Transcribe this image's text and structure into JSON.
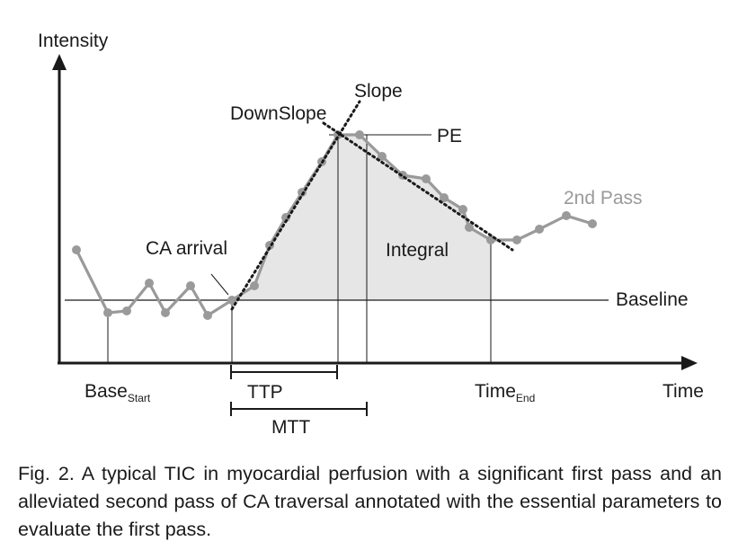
{
  "figure": {
    "y_axis_label": "Intensity",
    "x_axis_label": "Time",
    "labels": {
      "slope": "Slope",
      "downslope": "DownSlope",
      "pe": "PE",
      "second_pass": "2nd Pass",
      "ca_arrival": "CA arrival",
      "integral": "Integral",
      "baseline": "Baseline",
      "ttp": "TTP",
      "mtt": "MTT",
      "base_start_main": "Base",
      "base_start_sub": "Start",
      "time_end_main": "Time",
      "time_end_sub": "End"
    },
    "colors": {
      "curve": "#9a9a9a",
      "integral_fill": "#e6e6e6",
      "line": "#1a1a1a",
      "second_pass_text": "#9a9a9a"
    }
  },
  "caption": "Fig. 2. A typical TIC in myocardial perfusion with a significant first pass and an alleviated second pass of CA traversal annotated with the essential parameters to evaluate the first pass."
}
